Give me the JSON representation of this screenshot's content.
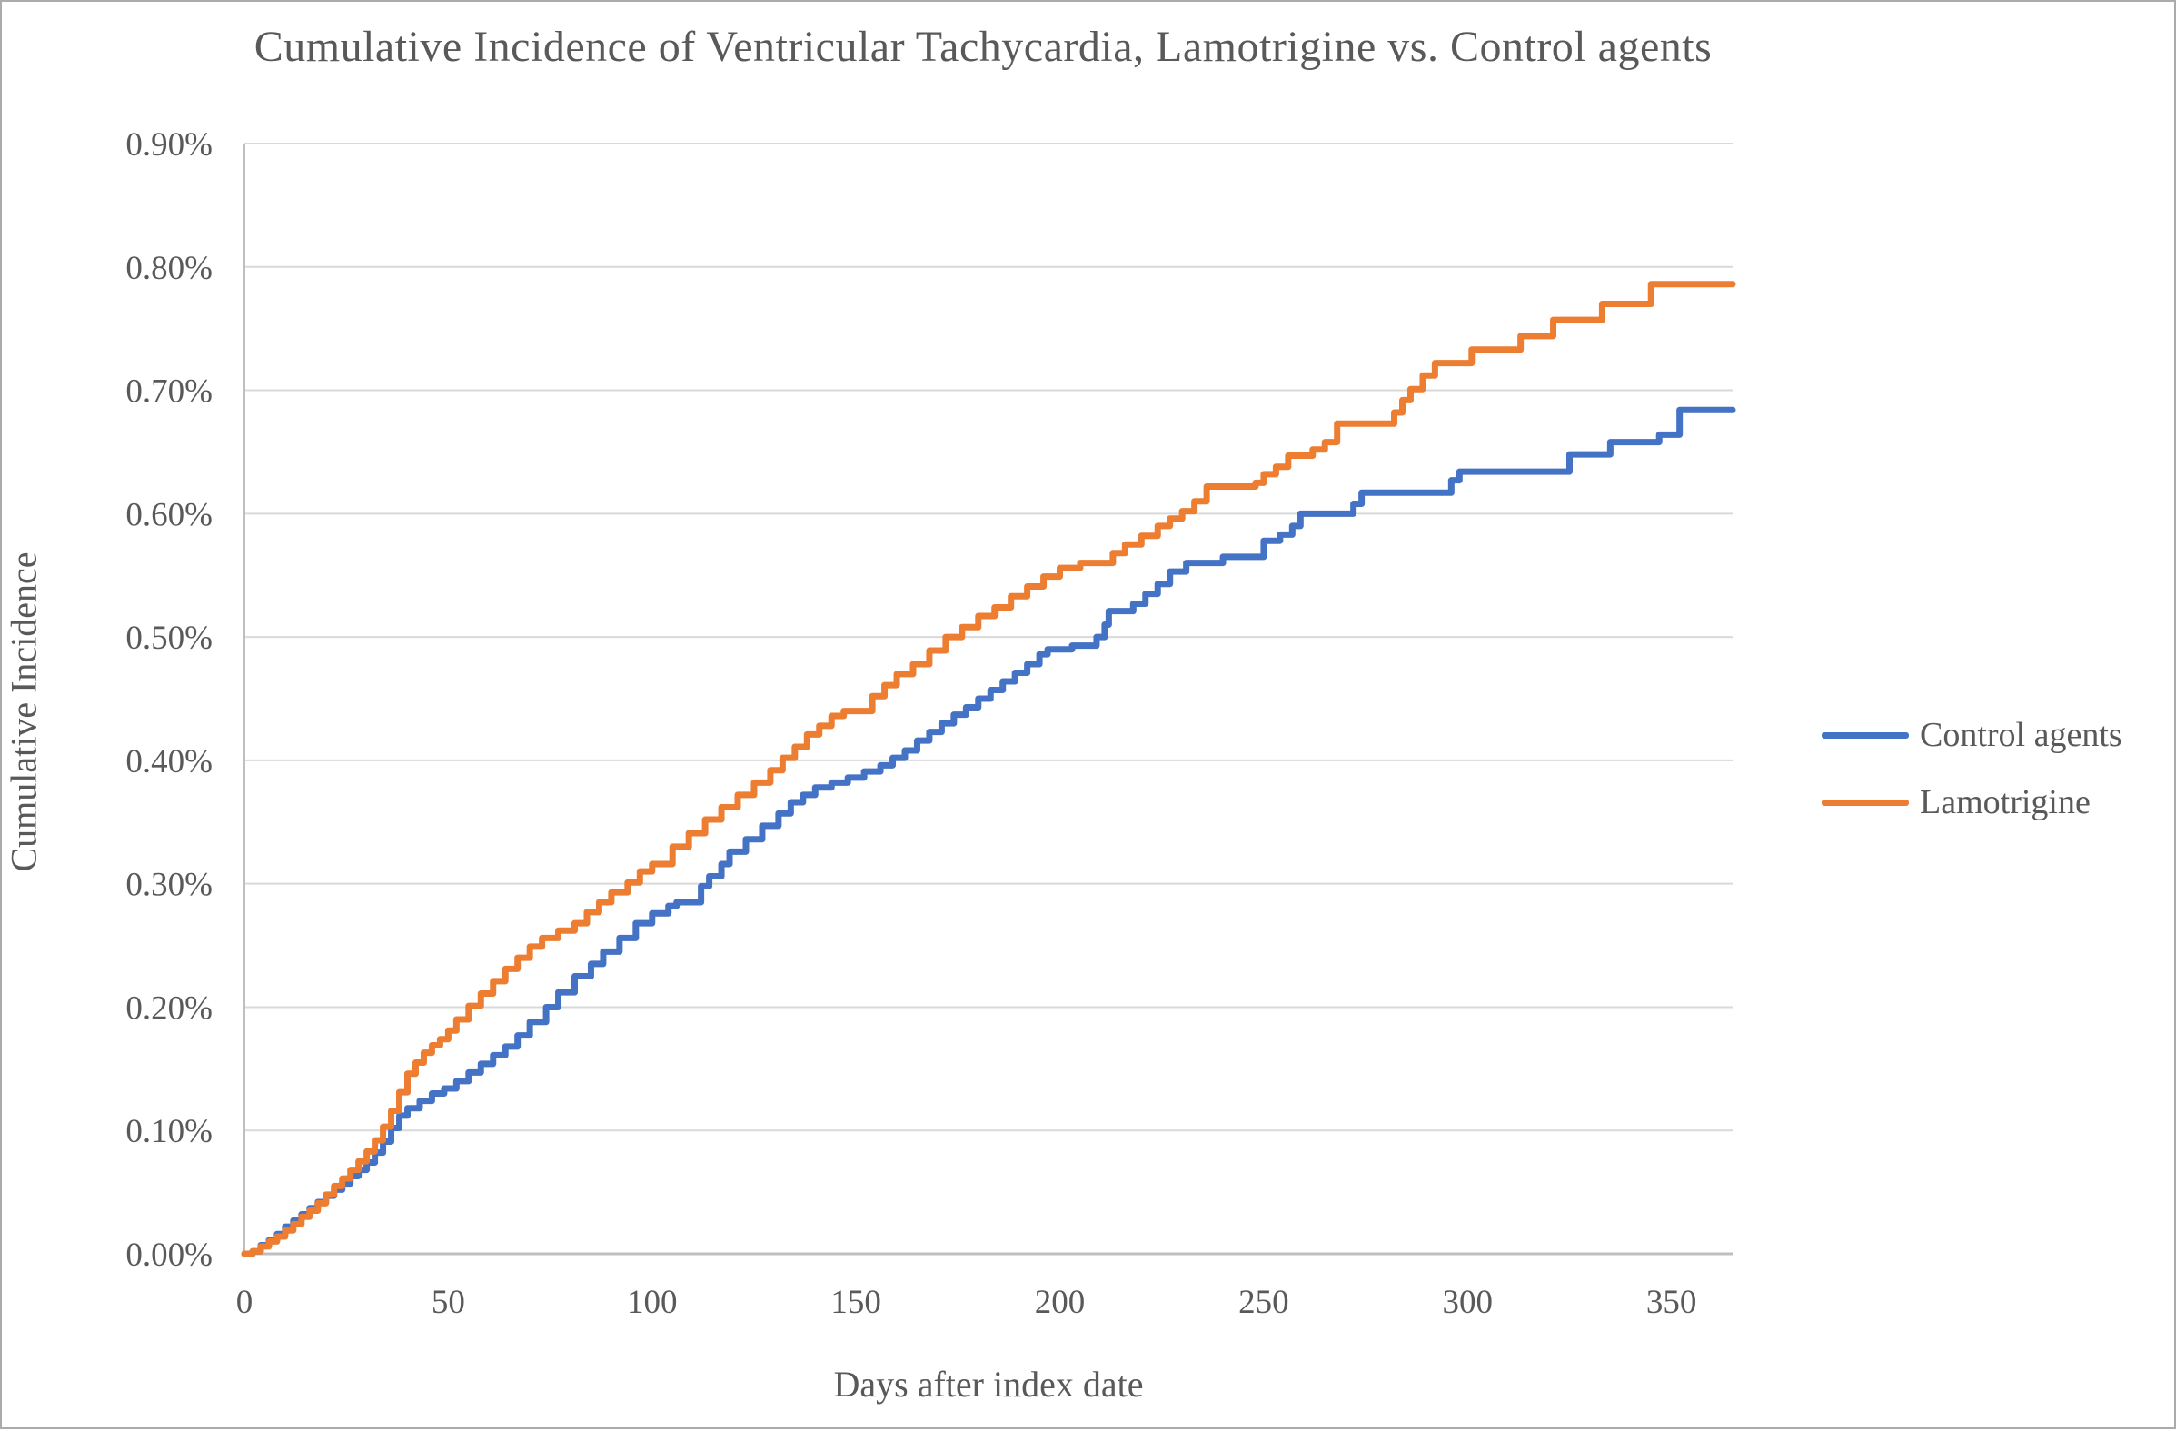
{
  "chart_data": {
    "type": "line",
    "line_style": "step-after",
    "title": "Cumulative Incidence of Ventricular Tachycardia, Lamotrigine vs. Control agents",
    "xlabel": "Days after index date",
    "ylabel": "Cumulative Incidence",
    "xlim": [
      0,
      365
    ],
    "ylim": [
      0,
      0.9
    ],
    "x_ticks": [
      0,
      50,
      100,
      150,
      200,
      250,
      300,
      350
    ],
    "y_ticks": [
      "0.00%",
      "0.10%",
      "0.20%",
      "0.30%",
      "0.40%",
      "0.50%",
      "0.60%",
      "0.70%",
      "0.80%",
      "0.90%"
    ],
    "y_tick_values": [
      0,
      0.1,
      0.2,
      0.3,
      0.4,
      0.5,
      0.6,
      0.7,
      0.8,
      0.9
    ],
    "grid": true,
    "legend_position": "right",
    "units": "percent",
    "series": [
      {
        "name": "Control agents",
        "color": "#4472C4",
        "points": [
          [
            0,
            0
          ],
          [
            2,
            0.002
          ],
          [
            4,
            0.007
          ],
          [
            6,
            0.011
          ],
          [
            8,
            0.016
          ],
          [
            10,
            0.022
          ],
          [
            12,
            0.027
          ],
          [
            14,
            0.032
          ],
          [
            16,
            0.037
          ],
          [
            18,
            0.042
          ],
          [
            20,
            0.047
          ],
          [
            22,
            0.052
          ],
          [
            24,
            0.057
          ],
          [
            26,
            0.063
          ],
          [
            28,
            0.068
          ],
          [
            30,
            0.074
          ],
          [
            32,
            0.082
          ],
          [
            34,
            0.091
          ],
          [
            36,
            0.102
          ],
          [
            38,
            0.112
          ],
          [
            40,
            0.118
          ],
          [
            43,
            0.124
          ],
          [
            46,
            0.13
          ],
          [
            49,
            0.134
          ],
          [
            52,
            0.14
          ],
          [
            55,
            0.147
          ],
          [
            58,
            0.154
          ],
          [
            61,
            0.161
          ],
          [
            64,
            0.168
          ],
          [
            67,
            0.177
          ],
          [
            70,
            0.188
          ],
          [
            74,
            0.2
          ],
          [
            77,
            0.212
          ],
          [
            81,
            0.225
          ],
          [
            85,
            0.235
          ],
          [
            88,
            0.245
          ],
          [
            92,
            0.256
          ],
          [
            96,
            0.268
          ],
          [
            100,
            0.276
          ],
          [
            104,
            0.282
          ],
          [
            106,
            0.285
          ],
          [
            112,
            0.298
          ],
          [
            114,
            0.306
          ],
          [
            117,
            0.316
          ],
          [
            119,
            0.326
          ],
          [
            123,
            0.336
          ],
          [
            127,
            0.347
          ],
          [
            131,
            0.357
          ],
          [
            134,
            0.366
          ],
          [
            137,
            0.372
          ],
          [
            140,
            0.378
          ],
          [
            144,
            0.382
          ],
          [
            148,
            0.386
          ],
          [
            152,
            0.391
          ],
          [
            156,
            0.396
          ],
          [
            159,
            0.402
          ],
          [
            162,
            0.408
          ],
          [
            165,
            0.416
          ],
          [
            168,
            0.423
          ],
          [
            171,
            0.43
          ],
          [
            174,
            0.437
          ],
          [
            177,
            0.443
          ],
          [
            180,
            0.45
          ],
          [
            183,
            0.457
          ],
          [
            186,
            0.464
          ],
          [
            189,
            0.471
          ],
          [
            192,
            0.478
          ],
          [
            195,
            0.486
          ],
          [
            197,
            0.49
          ],
          [
            203,
            0.493
          ],
          [
            209,
            0.5
          ],
          [
            211,
            0.51
          ],
          [
            212,
            0.521
          ],
          [
            218,
            0.527
          ],
          [
            221,
            0.535
          ],
          [
            224,
            0.543
          ],
          [
            227,
            0.553
          ],
          [
            231,
            0.56
          ],
          [
            240,
            0.565
          ],
          [
            250,
            0.578
          ],
          [
            254,
            0.583
          ],
          [
            257,
            0.59
          ],
          [
            259,
            0.6
          ],
          [
            272,
            0.608
          ],
          [
            274,
            0.617
          ],
          [
            296,
            0.627
          ],
          [
            298,
            0.634
          ],
          [
            325,
            0.648
          ],
          [
            335,
            0.658
          ],
          [
            347,
            0.664
          ],
          [
            352,
            0.684
          ],
          [
            365,
            0.684
          ]
        ]
      },
      {
        "name": "Lamotrigine",
        "color": "#ED7D31",
        "points": [
          [
            0,
            0
          ],
          [
            2,
            0.002
          ],
          [
            4,
            0.006
          ],
          [
            6,
            0.01
          ],
          [
            8,
            0.014
          ],
          [
            10,
            0.019
          ],
          [
            12,
            0.024
          ],
          [
            14,
            0.03
          ],
          [
            16,
            0.035
          ],
          [
            18,
            0.041
          ],
          [
            20,
            0.048
          ],
          [
            22,
            0.055
          ],
          [
            24,
            0.061
          ],
          [
            26,
            0.068
          ],
          [
            28,
            0.075
          ],
          [
            30,
            0.083
          ],
          [
            32,
            0.092
          ],
          [
            34,
            0.103
          ],
          [
            36,
            0.116
          ],
          [
            38,
            0.131
          ],
          [
            40,
            0.146
          ],
          [
            42,
            0.155
          ],
          [
            44,
            0.163
          ],
          [
            46,
            0.169
          ],
          [
            48,
            0.174
          ],
          [
            50,
            0.181
          ],
          [
            52,
            0.19
          ],
          [
            55,
            0.201
          ],
          [
            58,
            0.211
          ],
          [
            61,
            0.221
          ],
          [
            64,
            0.231
          ],
          [
            67,
            0.24
          ],
          [
            70,
            0.249
          ],
          [
            73,
            0.256
          ],
          [
            77,
            0.262
          ],
          [
            81,
            0.268
          ],
          [
            84,
            0.277
          ],
          [
            87,
            0.285
          ],
          [
            90,
            0.293
          ],
          [
            94,
            0.301
          ],
          [
            97,
            0.31
          ],
          [
            100,
            0.316
          ],
          [
            105,
            0.33
          ],
          [
            109,
            0.341
          ],
          [
            113,
            0.352
          ],
          [
            117,
            0.362
          ],
          [
            121,
            0.372
          ],
          [
            125,
            0.382
          ],
          [
            129,
            0.392
          ],
          [
            132,
            0.402
          ],
          [
            135,
            0.411
          ],
          [
            138,
            0.421
          ],
          [
            141,
            0.428
          ],
          [
            144,
            0.436
          ],
          [
            147,
            0.44
          ],
          [
            154,
            0.452
          ],
          [
            157,
            0.461
          ],
          [
            160,
            0.47
          ],
          [
            164,
            0.478
          ],
          [
            168,
            0.489
          ],
          [
            172,
            0.5
          ],
          [
            176,
            0.508
          ],
          [
            180,
            0.517
          ],
          [
            184,
            0.524
          ],
          [
            188,
            0.533
          ],
          [
            192,
            0.541
          ],
          [
            196,
            0.549
          ],
          [
            200,
            0.556
          ],
          [
            205,
            0.56
          ],
          [
            213,
            0.568
          ],
          [
            216,
            0.575
          ],
          [
            220,
            0.582
          ],
          [
            224,
            0.59
          ],
          [
            227,
            0.596
          ],
          [
            230,
            0.602
          ],
          [
            233,
            0.61
          ],
          [
            236,
            0.622
          ],
          [
            248,
            0.625
          ],
          [
            250,
            0.632
          ],
          [
            253,
            0.638
          ],
          [
            256,
            0.647
          ],
          [
            262,
            0.652
          ],
          [
            265,
            0.658
          ],
          [
            268,
            0.673
          ],
          [
            282,
            0.682
          ],
          [
            284,
            0.692
          ],
          [
            286,
            0.701
          ],
          [
            289,
            0.712
          ],
          [
            292,
            0.722
          ],
          [
            301,
            0.733
          ],
          [
            313,
            0.744
          ],
          [
            321,
            0.757
          ],
          [
            333,
            0.77
          ],
          [
            345,
            0.786
          ],
          [
            365,
            0.786
          ]
        ]
      }
    ]
  },
  "style": {
    "grid_color": "#D9D9D9",
    "axis_color": "#BFBFBF",
    "text_color": "#595959",
    "background": "#FFFFFF",
    "line_width": 7
  },
  "legend": {
    "entries": [
      "Control agents",
      "Lamotrigine"
    ]
  }
}
